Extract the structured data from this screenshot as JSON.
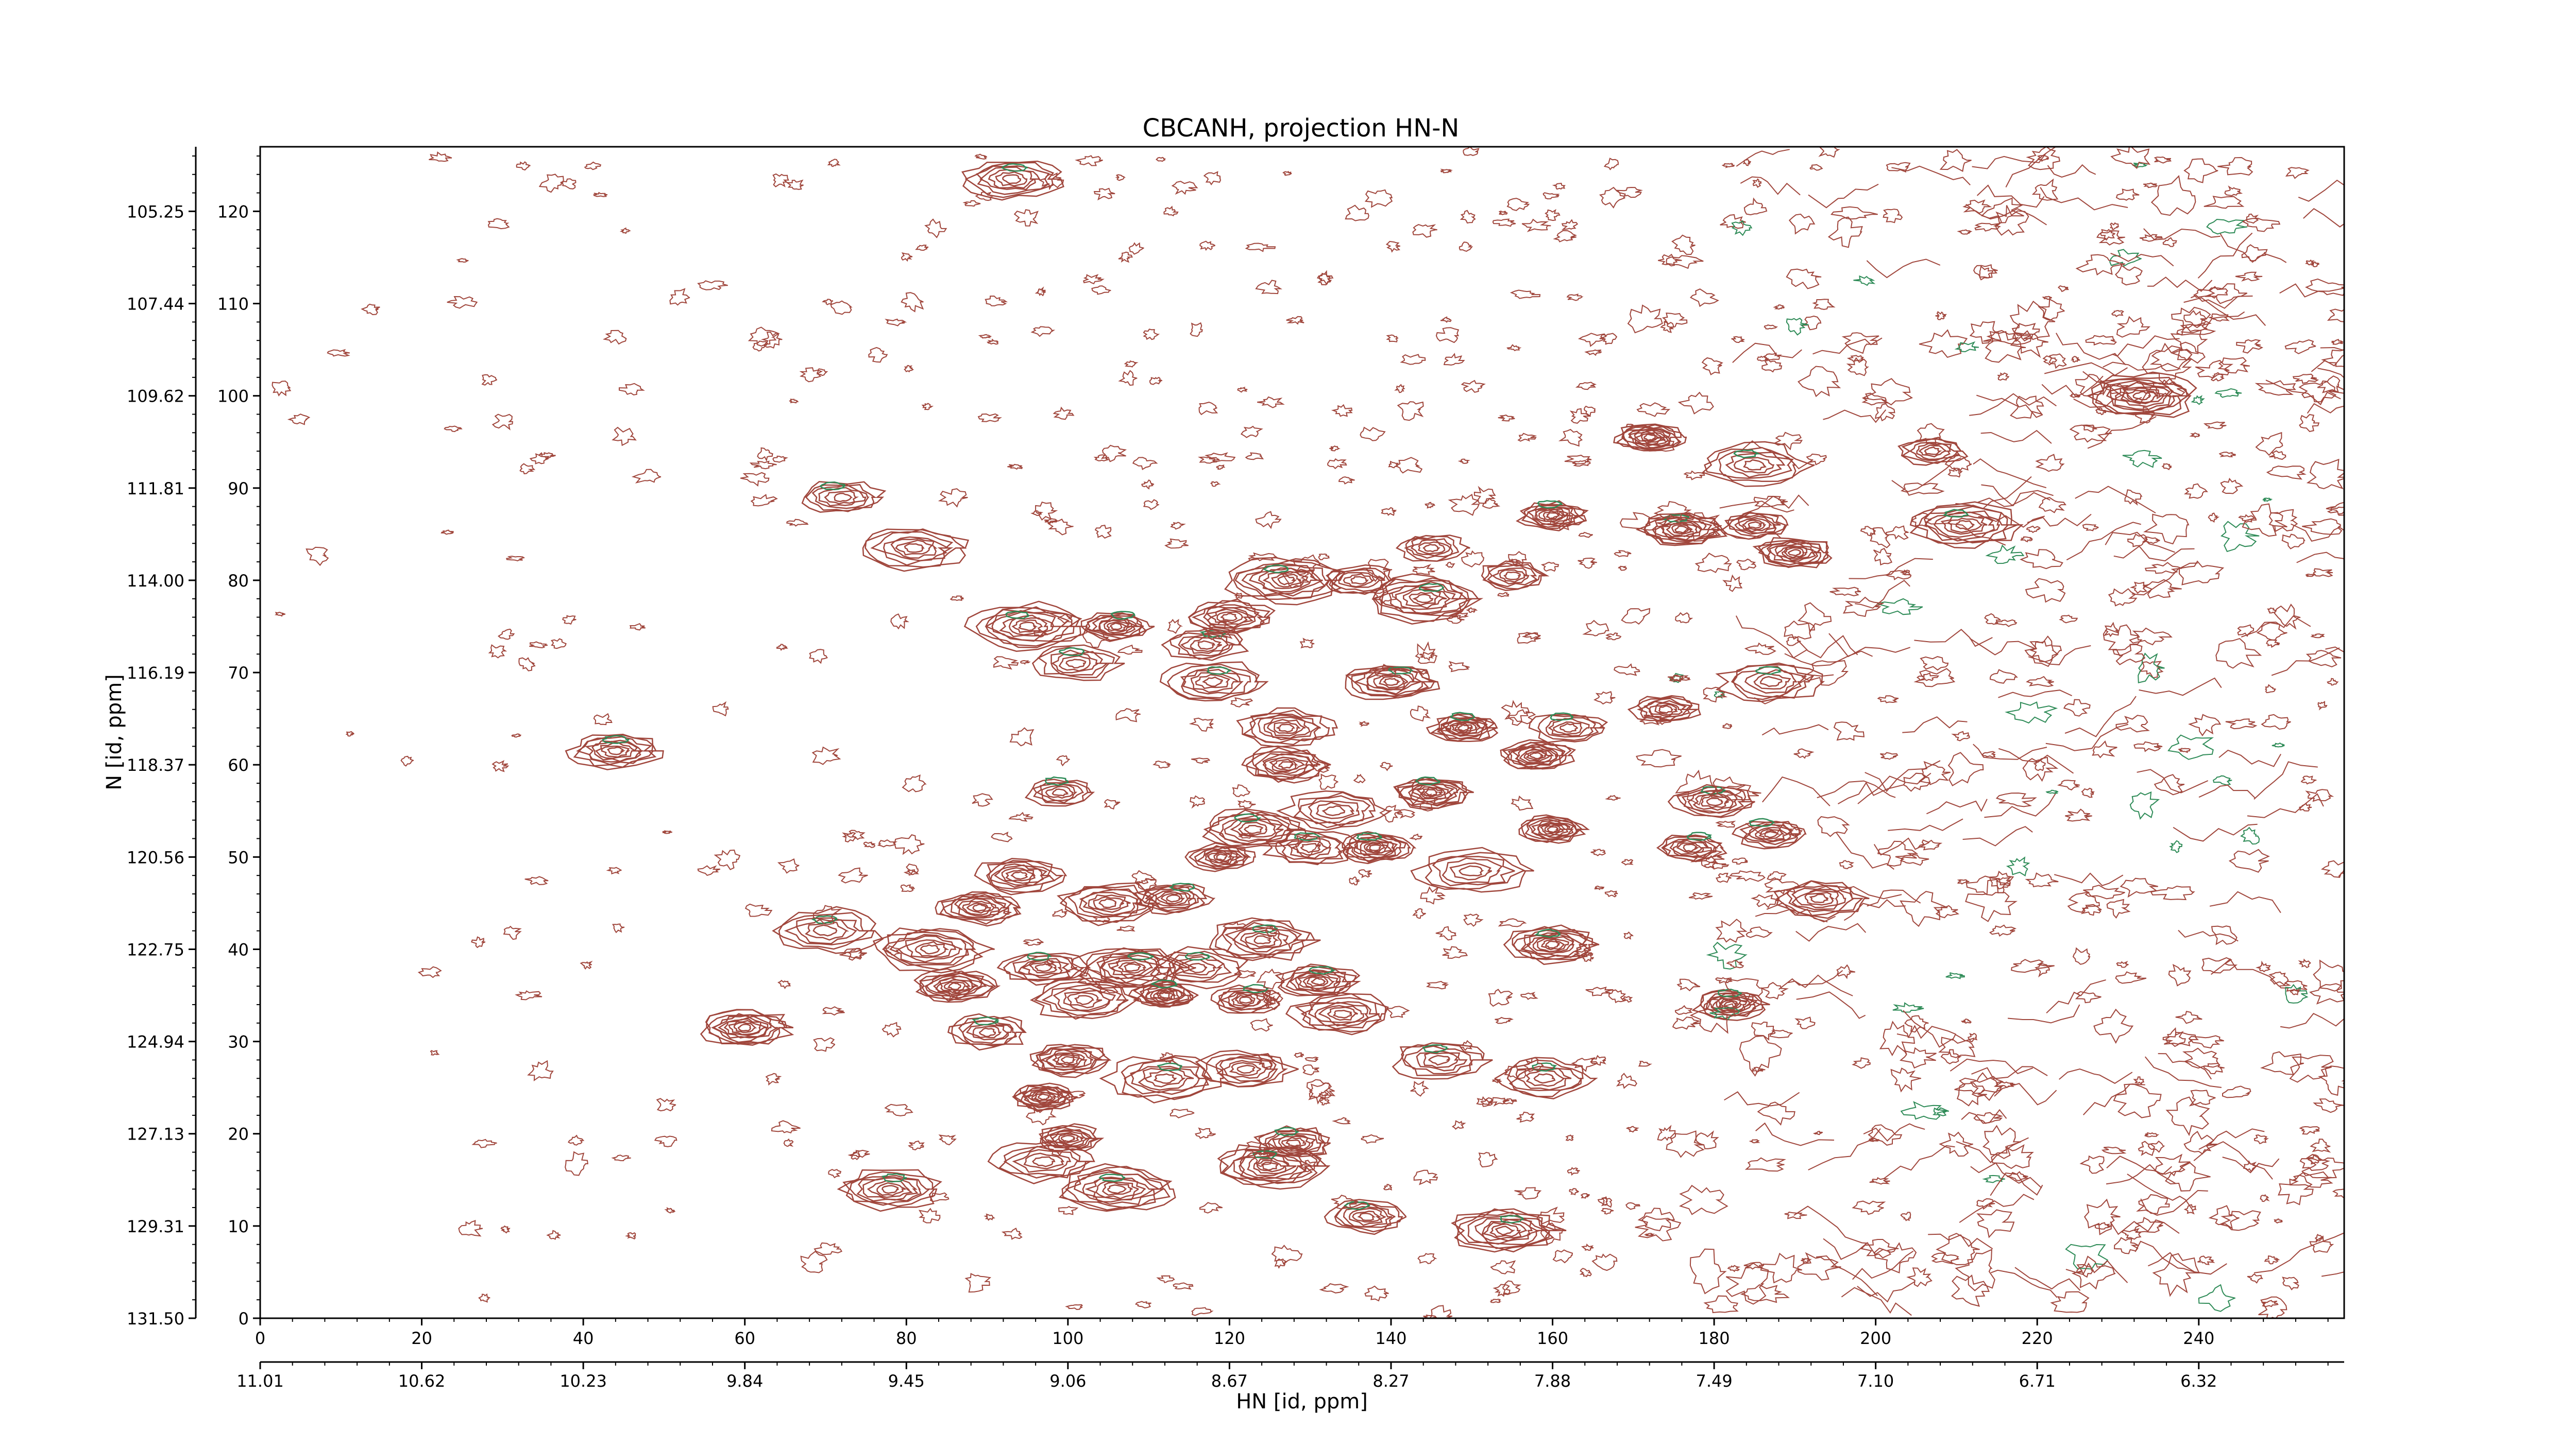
{
  "chart_data": {
    "type": "contour",
    "title": "CBCANH, projection HN-N",
    "xlabel": "HN [id, ppm]",
    "ylabel": "N [id, ppm]",
    "xlim": [
      0,
      258
    ],
    "ylim": [
      0,
      127
    ],
    "x_index_ticks": [
      "0",
      "20",
      "40",
      "60",
      "80",
      "100",
      "120",
      "140",
      "160",
      "180",
      "200",
      "220",
      "240"
    ],
    "x_ppm_ticks": [
      "11.01",
      "10.62",
      "10.23",
      "9.84",
      "9.45",
      "9.06",
      "8.67",
      "8.27",
      "7.88",
      "7.49",
      "7.10",
      "6.71",
      "6.32"
    ],
    "y_index_ticks": [
      "0",
      "10",
      "20",
      "30",
      "40",
      "50",
      "60",
      "70",
      "80",
      "90",
      "100",
      "110",
      "120"
    ],
    "y_ppm_ticks": [
      "131.50",
      "129.31",
      "127.13",
      "124.94",
      "122.75",
      "120.56",
      "118.37",
      "116.19",
      "114.00",
      "111.81",
      "109.62",
      "107.44",
      "105.25"
    ],
    "series": [
      {
        "color": "#a0463c",
        "sign": "positive"
      },
      {
        "color": "#2e8b57",
        "sign": "negative"
      }
    ],
    "peaks": [
      {
        "x": 93,
        "y": 123.5
      },
      {
        "x": 72,
        "y": 89
      },
      {
        "x": 81,
        "y": 83.5
      },
      {
        "x": 44,
        "y": 61.5
      },
      {
        "x": 95,
        "y": 75
      },
      {
        "x": 106,
        "y": 75
      },
      {
        "x": 101,
        "y": 71
      },
      {
        "x": 117,
        "y": 73
      },
      {
        "x": 120,
        "y": 76
      },
      {
        "x": 118,
        "y": 69
      },
      {
        "x": 127,
        "y": 80
      },
      {
        "x": 136,
        "y": 80
      },
      {
        "x": 145,
        "y": 83.5
      },
      {
        "x": 155,
        "y": 80.5
      },
      {
        "x": 144,
        "y": 78
      },
      {
        "x": 160,
        "y": 87
      },
      {
        "x": 172,
        "y": 95.5
      },
      {
        "x": 185,
        "y": 86
      },
      {
        "x": 176,
        "y": 85.5
      },
      {
        "x": 190,
        "y": 83
      },
      {
        "x": 233,
        "y": 100
      },
      {
        "x": 207,
        "y": 94
      },
      {
        "x": 211,
        "y": 86
      },
      {
        "x": 185,
        "y": 92.5
      },
      {
        "x": 140,
        "y": 69
      },
      {
        "x": 149,
        "y": 64
      },
      {
        "x": 162,
        "y": 64
      },
      {
        "x": 158,
        "y": 61
      },
      {
        "x": 174,
        "y": 66
      },
      {
        "x": 187,
        "y": 69
      },
      {
        "x": 127,
        "y": 64
      },
      {
        "x": 127,
        "y": 60
      },
      {
        "x": 99,
        "y": 57
      },
      {
        "x": 145,
        "y": 57
      },
      {
        "x": 133,
        "y": 55
      },
      {
        "x": 123,
        "y": 53
      },
      {
        "x": 119,
        "y": 50
      },
      {
        "x": 130,
        "y": 51
      },
      {
        "x": 138,
        "y": 51
      },
      {
        "x": 160,
        "y": 53
      },
      {
        "x": 177,
        "y": 51
      },
      {
        "x": 187,
        "y": 52.5
      },
      {
        "x": 180,
        "y": 56
      },
      {
        "x": 150,
        "y": 48.5
      },
      {
        "x": 105,
        "y": 45
      },
      {
        "x": 113,
        "y": 45.5
      },
      {
        "x": 94,
        "y": 48
      },
      {
        "x": 89,
        "y": 44.5
      },
      {
        "x": 70,
        "y": 42
      },
      {
        "x": 83,
        "y": 40
      },
      {
        "x": 193,
        "y": 45.5
      },
      {
        "x": 97,
        "y": 38
      },
      {
        "x": 108,
        "y": 38
      },
      {
        "x": 116,
        "y": 38
      },
      {
        "x": 124,
        "y": 41
      },
      {
        "x": 160,
        "y": 40.5
      },
      {
        "x": 86,
        "y": 36
      },
      {
        "x": 102,
        "y": 34.5
      },
      {
        "x": 112,
        "y": 35
      },
      {
        "x": 122,
        "y": 34.5
      },
      {
        "x": 131,
        "y": 36.5
      },
      {
        "x": 134,
        "y": 33
      },
      {
        "x": 90,
        "y": 31
      },
      {
        "x": 60,
        "y": 31.5
      },
      {
        "x": 182,
        "y": 34
      },
      {
        "x": 100,
        "y": 28
      },
      {
        "x": 112,
        "y": 26
      },
      {
        "x": 122,
        "y": 27
      },
      {
        "x": 146,
        "y": 28
      },
      {
        "x": 159,
        "y": 26
      },
      {
        "x": 97,
        "y": 24
      },
      {
        "x": 100,
        "y": 19.5
      },
      {
        "x": 97,
        "y": 17
      },
      {
        "x": 128,
        "y": 19
      },
      {
        "x": 125,
        "y": 16.5
      },
      {
        "x": 78,
        "y": 14
      },
      {
        "x": 106,
        "y": 14
      },
      {
        "x": 137,
        "y": 11
      },
      {
        "x": 154,
        "y": 9.5
      }
    ]
  }
}
